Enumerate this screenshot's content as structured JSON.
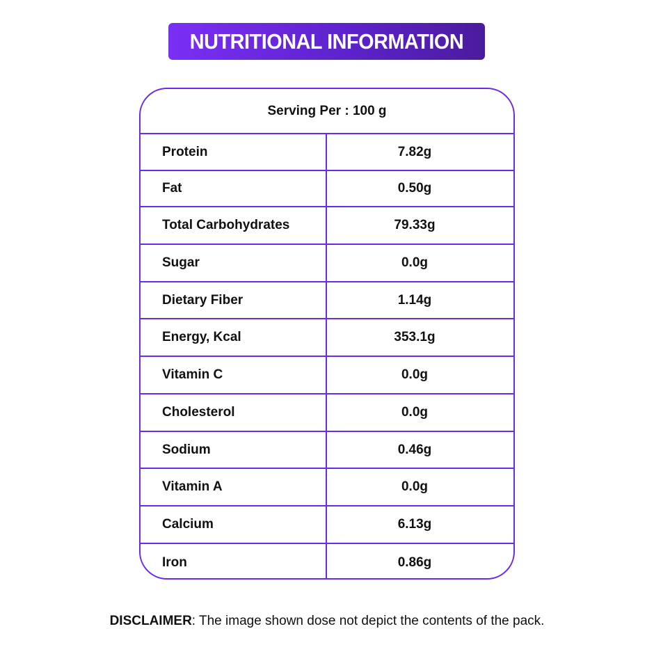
{
  "title": "NUTRITIONAL INFORMATION",
  "serving": "Serving Per : 100 g",
  "rows": [
    {
      "name": "Protein",
      "value": "7.82g"
    },
    {
      "name": "Fat",
      "value": "0.50g"
    },
    {
      "name": "Total Carbohydrates",
      "value": "79.33g"
    },
    {
      "name": "Sugar",
      "value": "0.0g"
    },
    {
      "name": "Dietary Fiber",
      "value": "1.14g"
    },
    {
      "name": "Energy, Kcal",
      "value": "353.1g"
    },
    {
      "name": "Vitamin C",
      "value": "0.0g"
    },
    {
      "name": "Cholesterol",
      "value": "0.0g"
    },
    {
      "name": "Sodium",
      "value": "0.46g"
    },
    {
      "name": "Vitamin A",
      "value": "0.0g"
    },
    {
      "name": "Calcium",
      "value": "6.13g"
    },
    {
      "name": "Iron",
      "value": "0.86g"
    }
  ],
  "disclaimer": {
    "label": "DISCLAIMER",
    "text": ": The image shown dose not depict the contents of the pack."
  },
  "colors": {
    "accent": "#6a2be6",
    "banner_start": "#7a2ff5",
    "banner_end": "#4a1c9c"
  }
}
